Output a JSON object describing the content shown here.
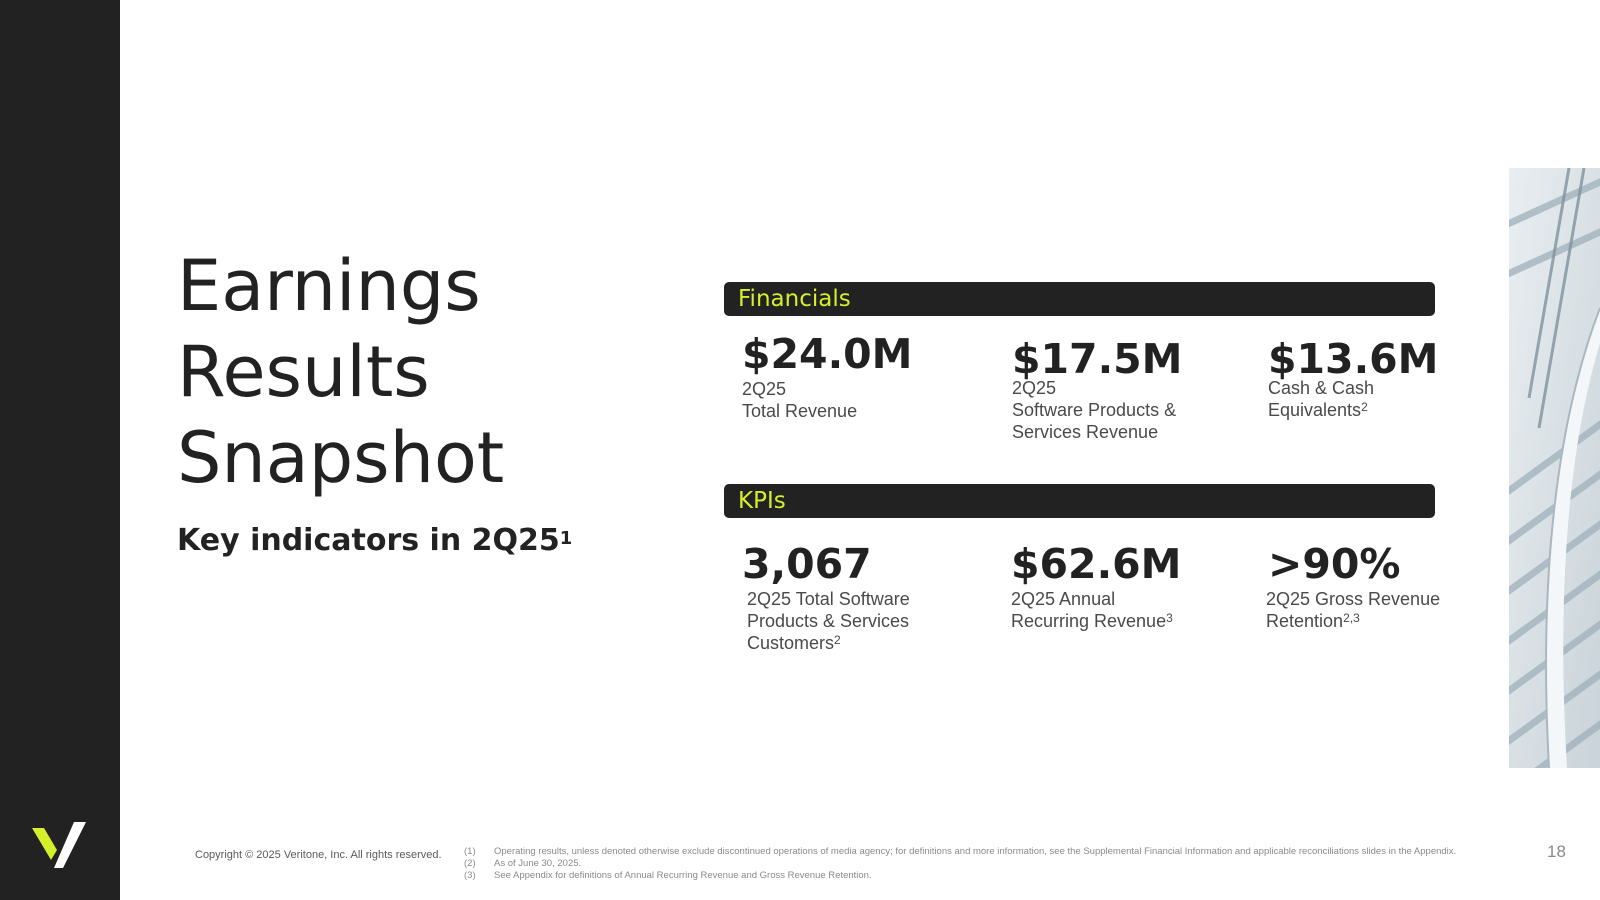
{
  "slide": {
    "title_lines": [
      "Earnings",
      "Results",
      "Snapshot"
    ],
    "subtitle": "Key indicators in 2Q25",
    "subtitle_sup": "1"
  },
  "financials": {
    "header": "Financials",
    "metrics": [
      {
        "value": "$24.0M",
        "label_lines": [
          "2Q25",
          "Total Revenue"
        ],
        "sup": ""
      },
      {
        "value": "$17.5M",
        "label_lines": [
          "2Q25",
          "Software Products &",
          "Services Revenue"
        ],
        "sup": ""
      },
      {
        "value": "$13.6M",
        "label_lines": [
          "Cash & Cash",
          "Equivalents"
        ],
        "sup": "2"
      }
    ]
  },
  "kpis": {
    "header": "KPIs",
    "metrics": [
      {
        "value": "3,067",
        "label_lines": [
          "2Q25 Total Software",
          "Products & Services",
          "Customers"
        ],
        "sup": "2"
      },
      {
        "value": "$62.6M",
        "label_lines": [
          "2Q25 Annual",
          "Recurring Revenue"
        ],
        "sup": "3"
      },
      {
        "value": ">90%",
        "label_lines": [
          "2Q25 Gross Revenue",
          "Retention"
        ],
        "sup": "2,3"
      }
    ]
  },
  "footer": {
    "copyright": "Copyright © 2025 Veritone, Inc. All rights reserved.",
    "footnotes": [
      {
        "num": "(1)",
        "text": "Operating results, unless denoted otherwise exclude discontinued operations of media agency; for definitions and more information, see the Supplemental Financial Information and applicable reconciliations slides in the Appendix."
      },
      {
        "num": "(2)",
        "text": "As of June 30, 2025."
      },
      {
        "num": "(3)",
        "text": "See Appendix for definitions of Annual Recurring Revenue and Gross Revenue Retention."
      }
    ],
    "page_number": "18"
  },
  "colors": {
    "sidebar": "#222222",
    "accent": "#d5ef2a",
    "text": "#222222"
  },
  "icons": {
    "logo": "veritone-v-logo"
  }
}
